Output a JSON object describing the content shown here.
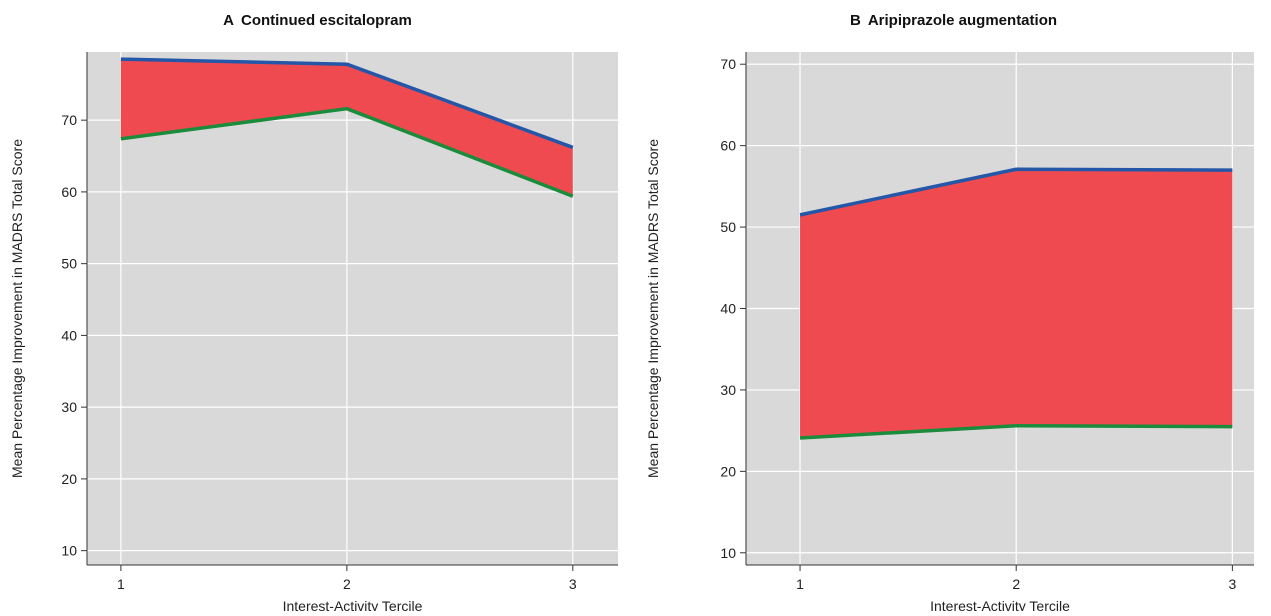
{
  "chart_data": [
    {
      "type": "area",
      "panel_letter": "A",
      "title": "Continued escitalopram",
      "xlabel": "Interest-Activity Tercile",
      "ylabel": "Mean Percentage Improvement in MADRS Total Score",
      "x": [
        1,
        2,
        3
      ],
      "xticks": [
        1,
        2,
        3
      ],
      "yticks": [
        10,
        20,
        30,
        40,
        50,
        60,
        70
      ],
      "xlim": [
        0.85,
        3.2
      ],
      "ylim": [
        8,
        79.5
      ],
      "grid": true,
      "series": [
        {
          "values": [
            78.5,
            77.8,
            66.2
          ],
          "color": "#2457a8"
        },
        {
          "values": [
            67.4,
            71.6,
            59.4
          ],
          "color": "#1a8c3c"
        }
      ],
      "fill_color": "#ef4a50",
      "background_color": "#d9d9d9"
    },
    {
      "type": "area",
      "panel_letter": "B",
      "title": "Aripiprazole augmentation",
      "xlabel": "Interest-Activity Tercile",
      "ylabel": "Mean Percentage Improvement in MADRS Total Score",
      "x": [
        1,
        2,
        3
      ],
      "xticks": [
        1,
        2,
        3
      ],
      "yticks": [
        10,
        20,
        30,
        40,
        50,
        60,
        70
      ],
      "xlim": [
        0.75,
        3.1
      ],
      "ylim": [
        8.5,
        71.5
      ],
      "grid": true,
      "series": [
        {
          "values": [
            51.5,
            57.1,
            57.0
          ],
          "color": "#2457a8"
        },
        {
          "values": [
            24.1,
            25.6,
            25.5
          ],
          "color": "#1a8c3c"
        }
      ],
      "fill_color": "#ef4a50",
      "background_color": "#d9d9d9"
    }
  ]
}
